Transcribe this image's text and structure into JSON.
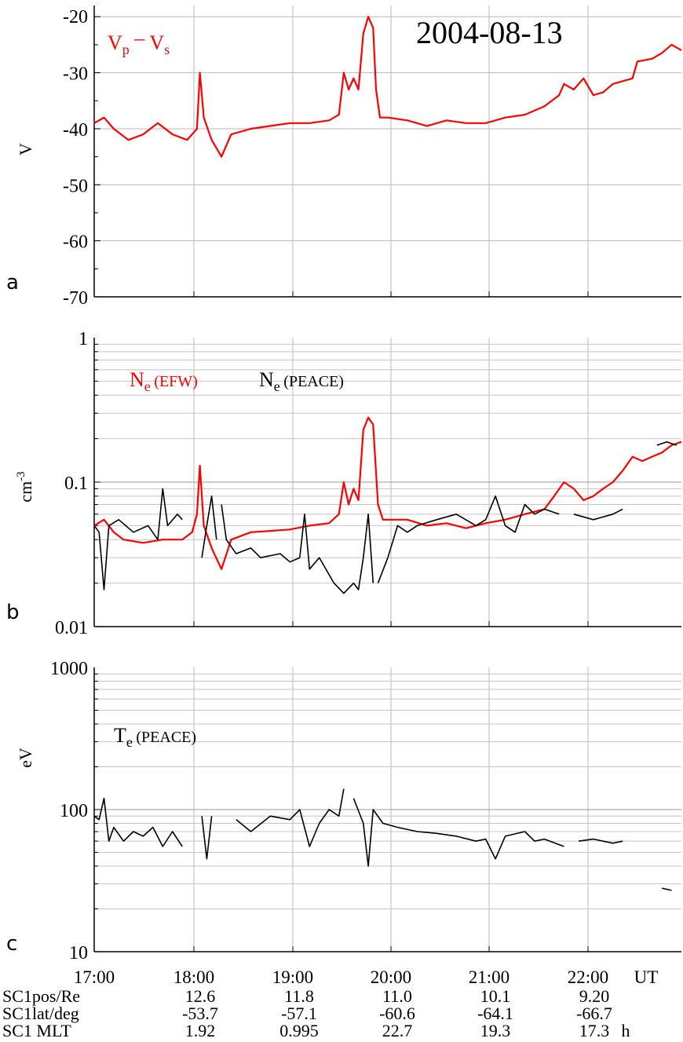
{
  "figure": {
    "date": "2004-08-13",
    "x_unit": "UT"
  },
  "chart_data": [
    {
      "type": "line",
      "panel": "a",
      "ylabel": "V",
      "yscale": "linear",
      "ylim": [
        -70,
        -18
      ],
      "yticks": [
        "-20",
        "-30",
        "-40",
        "-50",
        "-60",
        "-70"
      ],
      "xlim": [
        17.0,
        23.0
      ],
      "grid": true,
      "annotation": {
        "main": "V",
        "sub1": "p",
        "op": "–",
        "v2": "V",
        "sub2": "s",
        "color": "#ff0000"
      },
      "series": [
        {
          "color": "#ff0000",
          "points": [
            [
              17.0,
              -39
            ],
            [
              17.1,
              -38
            ],
            [
              17.2,
              -40
            ],
            [
              17.35,
              -42
            ],
            [
              17.5,
              -41
            ],
            [
              17.65,
              -39
            ],
            [
              17.8,
              -41
            ],
            [
              17.95,
              -42
            ],
            [
              18.05,
              -40
            ],
            [
              18.08,
              -30
            ],
            [
              18.12,
              -38
            ],
            [
              18.2,
              -42
            ],
            [
              18.3,
              -45
            ],
            [
              18.4,
              -41
            ],
            [
              18.6,
              -40
            ],
            [
              18.8,
              -39.5
            ],
            [
              19.0,
              -39
            ],
            [
              19.2,
              -39
            ],
            [
              19.4,
              -38.5
            ],
            [
              19.5,
              -37.5
            ],
            [
              19.55,
              -30
            ],
            [
              19.6,
              -33
            ],
            [
              19.65,
              -31
            ],
            [
              19.7,
              -33
            ],
            [
              19.75,
              -23
            ],
            [
              19.8,
              -20
            ],
            [
              19.85,
              -22
            ],
            [
              19.88,
              -33
            ],
            [
              19.92,
              -38
            ],
            [
              20.0,
              -38
            ],
            [
              20.2,
              -38.5
            ],
            [
              20.4,
              -39.5
            ],
            [
              20.6,
              -38.5
            ],
            [
              20.8,
              -39
            ],
            [
              21.0,
              -39
            ],
            [
              21.2,
              -38
            ],
            [
              21.4,
              -37.5
            ],
            [
              21.6,
              -36
            ],
            [
              21.75,
              -34
            ],
            [
              21.8,
              -32
            ],
            [
              21.9,
              -33
            ],
            [
              22.0,
              -31
            ],
            [
              22.1,
              -34
            ],
            [
              22.2,
              -33.5
            ],
            [
              22.3,
              -32
            ],
            [
              22.5,
              -31
            ],
            [
              22.55,
              -28
            ],
            [
              22.7,
              -27.5
            ],
            [
              22.8,
              -26.5
            ],
            [
              22.9,
              -25
            ],
            [
              23.0,
              -26
            ]
          ]
        }
      ]
    },
    {
      "type": "line",
      "panel": "b",
      "ylabel": "cm",
      "ylabel_exp": "-3",
      "yscale": "log",
      "ylim": [
        0.01,
        1
      ],
      "yticks": [
        "1",
        "0.1",
        "0.01"
      ],
      "xlim": [
        17.0,
        23.0
      ],
      "grid": true,
      "series": [
        {
          "name": "N",
          "sub": "e",
          "tag": "(EFW)",
          "color": "#ff0000",
          "points": [
            [
              17.0,
              0.05
            ],
            [
              17.1,
              0.055
            ],
            [
              17.2,
              0.045
            ],
            [
              17.3,
              0.04
            ],
            [
              17.5,
              0.038
            ],
            [
              17.7,
              0.04
            ],
            [
              17.9,
              0.04
            ],
            [
              18.0,
              0.045
            ],
            [
              18.05,
              0.06
            ],
            [
              18.08,
              0.13
            ],
            [
              18.12,
              0.05
            ],
            [
              18.2,
              0.035
            ],
            [
              18.3,
              0.025
            ],
            [
              18.4,
              0.04
            ],
            [
              18.6,
              0.045
            ],
            [
              18.8,
              0.046
            ],
            [
              19.0,
              0.047
            ],
            [
              19.2,
              0.05
            ],
            [
              19.4,
              0.052
            ],
            [
              19.5,
              0.06
            ],
            [
              19.55,
              0.1
            ],
            [
              19.6,
              0.07
            ],
            [
              19.65,
              0.09
            ],
            [
              19.7,
              0.075
            ],
            [
              19.75,
              0.23
            ],
            [
              19.8,
              0.28
            ],
            [
              19.85,
              0.25
            ],
            [
              19.9,
              0.07
            ],
            [
              19.95,
              0.055
            ],
            [
              20.2,
              0.055
            ],
            [
              20.4,
              0.05
            ],
            [
              20.6,
              0.052
            ],
            [
              20.8,
              0.048
            ],
            [
              21.0,
              0.052
            ],
            [
              21.2,
              0.055
            ],
            [
              21.4,
              0.06
            ],
            [
              21.6,
              0.065
            ],
            [
              21.7,
              0.08
            ],
            [
              21.8,
              0.1
            ],
            [
              21.9,
              0.09
            ],
            [
              22.0,
              0.075
            ],
            [
              22.1,
              0.08
            ],
            [
              22.2,
              0.09
            ],
            [
              22.3,
              0.1
            ],
            [
              22.4,
              0.12
            ],
            [
              22.5,
              0.15
            ],
            [
              22.6,
              0.14
            ],
            [
              22.7,
              0.15
            ],
            [
              22.8,
              0.16
            ],
            [
              22.9,
              0.18
            ],
            [
              23.0,
              0.19
            ]
          ]
        },
        {
          "name": "N",
          "sub": "e",
          "tag": "(PEACE)",
          "color": "#000000",
          "points": [
            [
              17.0,
              0.05
            ],
            [
              17.05,
              0.045
            ],
            [
              17.1,
              0.018
            ],
            [
              17.15,
              0.05
            ],
            [
              17.25,
              0.055
            ],
            [
              17.4,
              0.045
            ],
            [
              17.55,
              0.05
            ],
            [
              17.65,
              0.04
            ],
            [
              17.7,
              0.09
            ],
            [
              17.75,
              0.05
            ],
            [
              17.85,
              0.06
            ],
            [
              17.9,
              0.055
            ],
            [
              null,
              null
            ],
            [
              18.1,
              0.03
            ],
            [
              18.15,
              0.05
            ],
            [
              18.2,
              0.08
            ],
            [
              18.25,
              0.04
            ],
            [
              null,
              null
            ],
            [
              18.3,
              0.07
            ],
            [
              18.35,
              0.04
            ],
            [
              18.45,
              0.032
            ],
            [
              18.6,
              0.035
            ],
            [
              18.7,
              0.03
            ],
            [
              18.9,
              0.032
            ],
            [
              19.0,
              0.028
            ],
            [
              19.1,
              0.03
            ],
            [
              19.15,
              0.06
            ],
            [
              19.2,
              0.025
            ],
            [
              19.3,
              0.03
            ],
            [
              19.45,
              0.02
            ],
            [
              19.55,
              0.017
            ],
            [
              19.65,
              0.02
            ],
            [
              19.7,
              0.018
            ],
            [
              19.75,
              0.03
            ],
            [
              19.8,
              0.06
            ],
            [
              19.85,
              0.02
            ],
            [
              null,
              null
            ],
            [
              19.9,
              0.02
            ],
            [
              20.0,
              0.03
            ],
            [
              20.1,
              0.05
            ],
            [
              20.2,
              0.045
            ],
            [
              20.3,
              0.05
            ],
            [
              20.5,
              0.055
            ],
            [
              20.7,
              0.06
            ],
            [
              20.9,
              0.05
            ],
            [
              21.0,
              0.055
            ],
            [
              21.1,
              0.08
            ],
            [
              21.2,
              0.05
            ],
            [
              21.3,
              0.045
            ],
            [
              21.4,
              0.07
            ],
            [
              21.5,
              0.06
            ],
            [
              21.6,
              0.065
            ],
            [
              21.75,
              0.06
            ],
            [
              null,
              null
            ],
            [
              21.9,
              0.06
            ],
            [
              22.1,
              0.055
            ],
            [
              22.3,
              0.06
            ],
            [
              22.4,
              0.065
            ],
            [
              null,
              null
            ],
            [
              22.75,
              0.18
            ],
            [
              22.85,
              0.19
            ],
            [
              22.95,
              0.18
            ]
          ]
        }
      ]
    },
    {
      "type": "line",
      "panel": "c",
      "ylabel": "eV",
      "yscale": "log",
      "ylim": [
        10,
        1000
      ],
      "yticks": [
        "1000",
        "100",
        "10"
      ],
      "xlim": [
        17.0,
        23.0
      ],
      "grid": true,
      "series": [
        {
          "name": "T",
          "sub": "e",
          "tag": "(PEACE)",
          "color": "#000000",
          "points": [
            [
              17.0,
              90
            ],
            [
              17.05,
              85
            ],
            [
              17.1,
              120
            ],
            [
              17.15,
              60
            ],
            [
              17.2,
              75
            ],
            [
              17.3,
              60
            ],
            [
              17.4,
              70
            ],
            [
              17.5,
              65
            ],
            [
              17.6,
              75
            ],
            [
              17.7,
              55
            ],
            [
              17.8,
              70
            ],
            [
              17.9,
              55
            ],
            [
              null,
              null
            ],
            [
              18.1,
              90
            ],
            [
              18.15,
              45
            ],
            [
              18.2,
              90
            ],
            [
              null,
              null
            ],
            [
              18.3,
              50
            ],
            [
              null,
              null
            ],
            [
              18.45,
              85
            ],
            [
              18.6,
              70
            ],
            [
              18.8,
              90
            ],
            [
              19.0,
              85
            ],
            [
              19.1,
              100
            ],
            [
              19.2,
              55
            ],
            [
              19.3,
              80
            ],
            [
              19.4,
              100
            ],
            [
              19.5,
              90
            ],
            [
              19.55,
              140
            ],
            [
              null,
              null
            ],
            [
              19.65,
              120
            ],
            [
              19.75,
              80
            ],
            [
              19.8,
              40
            ],
            [
              19.85,
              100
            ],
            [
              19.95,
              80
            ],
            [
              20.1,
              75
            ],
            [
              20.3,
              70
            ],
            [
              20.5,
              68
            ],
            [
              20.7,
              65
            ],
            [
              20.9,
              60
            ],
            [
              21.0,
              62
            ],
            [
              21.1,
              45
            ],
            [
              21.2,
              65
            ],
            [
              21.4,
              70
            ],
            [
              21.5,
              60
            ],
            [
              21.6,
              62
            ],
            [
              21.8,
              55
            ],
            [
              null,
              null
            ],
            [
              21.95,
              60
            ],
            [
              22.1,
              62
            ],
            [
              22.3,
              58
            ],
            [
              22.4,
              60
            ],
            [
              null,
              null
            ],
            [
              22.8,
              28
            ],
            [
              22.9,
              27
            ]
          ]
        }
      ]
    }
  ],
  "x_axis": {
    "ticks": [
      "17:00",
      "18:00",
      "19:00",
      "20:00",
      "21:00",
      "22:00"
    ],
    "unit": "UT"
  },
  "ephemeris": {
    "rows": [
      {
        "label": "SC1pos/Re",
        "values": [
          "12.6",
          "11.8",
          "11.0",
          "10.1",
          "9.20"
        ],
        "suffix": ""
      },
      {
        "label": "SC1lat/deg",
        "values": [
          "-53.7",
          "-57.1",
          "-60.6",
          "-64.1",
          "-66.7"
        ],
        "suffix": ""
      },
      {
        "label": "SC1 MLT",
        "values": [
          "1.92",
          "0.995",
          "22.7",
          "19.3",
          "17.3"
        ],
        "suffix": "h"
      }
    ]
  }
}
